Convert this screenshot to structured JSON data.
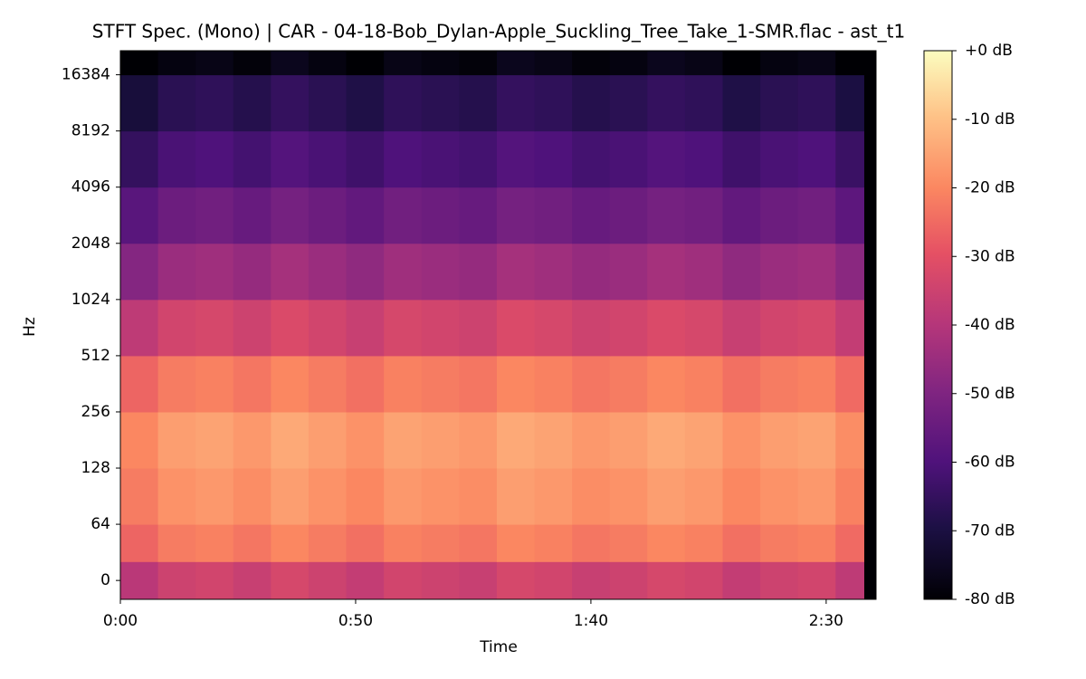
{
  "chart_data": {
    "type": "spectrogram",
    "title": "STFT Spec. (Mono) | CAR - 04-18-Bob_Dylan-Apple_Suckling_Tree_Take_1-SMR.flac - ast_t1",
    "xlabel": "Time",
    "ylabel": "Hz",
    "xlim": [
      0,
      160.6
    ],
    "xticks": [
      {
        "value": 0,
        "label": "0:00"
      },
      {
        "value": 50,
        "label": "0:50"
      },
      {
        "value": 100,
        "label": "1:40"
      },
      {
        "value": 150,
        "label": "2:30"
      }
    ],
    "ylim": [
      -21.5,
      22050
    ],
    "yscale": {
      "type": "symlog",
      "base": 2,
      "linthresh": 64
    },
    "yticks": [
      0,
      64,
      128,
      256,
      512,
      1024,
      2048,
      4096,
      8192,
      16384
    ],
    "time_bins": [
      0,
      8,
      16,
      24,
      32,
      40,
      48,
      56,
      64,
      72,
      80,
      88,
      96,
      104,
      112,
      120,
      128,
      136,
      144,
      152,
      158
    ],
    "freq_bins": [
      -21.5,
      21.5,
      64,
      128,
      256,
      512,
      1024,
      2048,
      4096,
      8192,
      16384,
      22050
    ],
    "values": [
      [
        -39,
        -35,
        -34,
        -36,
        -33,
        -35,
        -37,
        -34,
        -35,
        -36,
        -33,
        -34,
        -36,
        -35,
        -33,
        -34,
        -37,
        -35,
        -34,
        -38
      ],
      [
        -26,
        -22,
        -21,
        -23,
        -20,
        -22,
        -24,
        -21,
        -22,
        -23,
        -20,
        -21,
        -23,
        -22,
        -20,
        -21,
        -24,
        -22,
        -21,
        -25
      ],
      [
        -22,
        -18,
        -17,
        -19,
        -16,
        -18,
        -20,
        -17,
        -18,
        -19,
        -16,
        -17,
        -19,
        -18,
        -16,
        -17,
        -20,
        -18,
        -17,
        -21
      ],
      [
        -20,
        -16,
        -15,
        -17,
        -14,
        -16,
        -18,
        -15,
        -16,
        -17,
        -14,
        -15,
        -17,
        -16,
        -14,
        -15,
        -18,
        -16,
        -15,
        -19
      ],
      [
        -26,
        -22,
        -21,
        -23,
        -20,
        -22,
        -24,
        -21,
        -22,
        -23,
        -20,
        -21,
        -23,
        -22,
        -20,
        -21,
        -24,
        -22,
        -21,
        -25
      ],
      [
        -38,
        -34,
        -33,
        -35,
        -32,
        -34,
        -36,
        -33,
        -34,
        -35,
        -32,
        -33,
        -35,
        -34,
        -32,
        -33,
        -36,
        -34,
        -33,
        -37
      ],
      [
        -49,
        -45,
        -44,
        -46,
        -43,
        -45,
        -47,
        -44,
        -45,
        -46,
        -43,
        -44,
        -46,
        -45,
        -43,
        -44,
        -47,
        -45,
        -44,
        -48
      ],
      [
        -58,
        -54,
        -53,
        -55,
        -52,
        -54,
        -56,
        -53,
        -54,
        -55,
        -52,
        -53,
        -55,
        -54,
        -52,
        -53,
        -56,
        -54,
        -53,
        -57
      ],
      [
        -65,
        -61,
        -60,
        -62,
        -59,
        -61,
        -63,
        -60,
        -61,
        -62,
        -59,
        -60,
        -62,
        -61,
        -59,
        -60,
        -63,
        -61,
        -60,
        -64
      ],
      [
        -71,
        -67,
        -66,
        -68,
        -65,
        -67,
        -69,
        -66,
        -67,
        -68,
        -65,
        -66,
        -68,
        -67,
        -65,
        -66,
        -69,
        -67,
        -66,
        -70
      ],
      [
        -80,
        -78,
        -77,
        -79,
        -76,
        -78,
        -80,
        -77,
        -78,
        -79,
        -76,
        -77,
        -79,
        -78,
        -76,
        -77,
        -80,
        -78,
        -77,
        -80
      ]
    ],
    "colorbar": {
      "colormap": "magma",
      "lim": [
        -80,
        0
      ],
      "ticks": [
        {
          "value": 0,
          "label": "+0 dB"
        },
        {
          "value": -10,
          "label": "-10 dB"
        },
        {
          "value": -20,
          "label": "-20 dB"
        },
        {
          "value": -30,
          "label": "-30 dB"
        },
        {
          "value": -40,
          "label": "-40 dB"
        },
        {
          "value": -50,
          "label": "-50 dB"
        },
        {
          "value": -60,
          "label": "-60 dB"
        },
        {
          "value": -70,
          "label": "-70 dB"
        },
        {
          "value": -80,
          "label": "-80 dB"
        }
      ]
    }
  }
}
